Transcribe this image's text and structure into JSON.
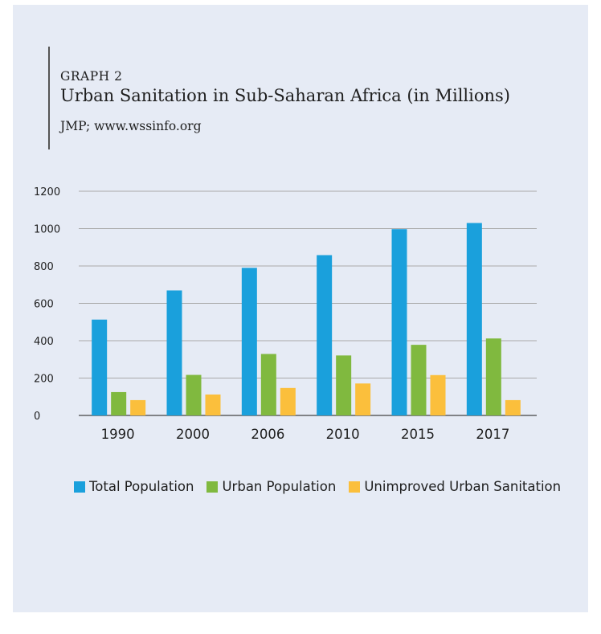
{
  "header": {
    "kicker": "GRAPH 2",
    "title": "Urban Sanitation in Sub-Saharan Africa",
    "title_unit": "(in Millions)",
    "source": "JMP; www.wssinfo.org"
  },
  "colors": {
    "background": "#e6ebf5",
    "total": "#1aa0dc",
    "urban": "#80b93f",
    "unimproved": "#fbbf3c"
  },
  "chart_data": {
    "type": "bar",
    "title": "Urban Sanitation in Sub-Saharan Africa (in Millions)",
    "categories": [
      "1990",
      "2000",
      "2006",
      "2010",
      "2015",
      "2017"
    ],
    "series": [
      {
        "name": "Total Population",
        "color": "#1aa0dc",
        "values": [
          513,
          669,
          790,
          858,
          997,
          1030
        ]
      },
      {
        "name": "Urban Population",
        "color": "#80b93f",
        "values": [
          125,
          217,
          329,
          321,
          378,
          412
        ]
      },
      {
        "name": "Unimproved Urban Sanitation",
        "color": "#fbbf3c",
        "values": [
          82,
          112,
          147,
          171,
          216,
          82
        ]
      }
    ],
    "ylim": [
      0,
      1200
    ],
    "yticks": [
      "0",
      "200",
      "400",
      "600",
      "800",
      "1000",
      "1200"
    ],
    "grid": true,
    "legend_position": "bottom"
  }
}
